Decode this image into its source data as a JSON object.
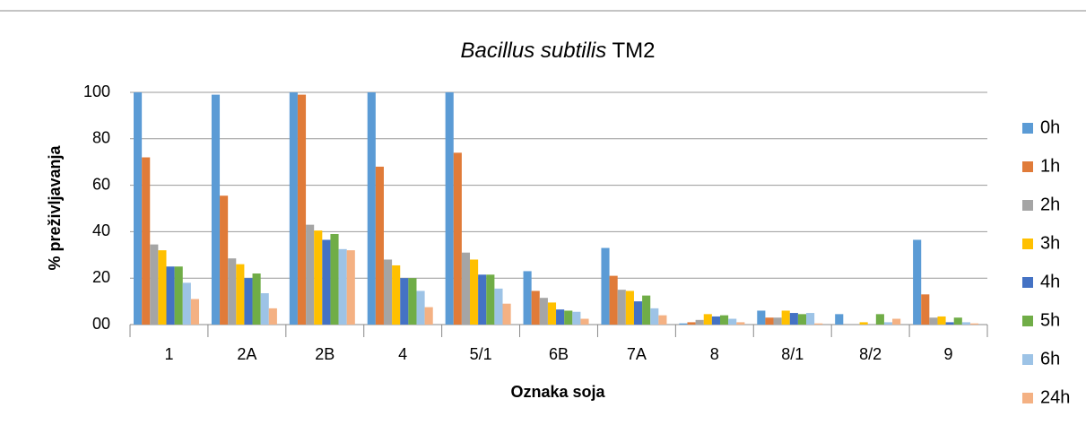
{
  "chart_data": {
    "type": "bar",
    "title": [
      "Bacillus subtilis",
      "TM2"
    ],
    "xlabel": "Oznaka soja",
    "ylabel": "% preživljavanja",
    "categories": [
      "1",
      "2A",
      "2B",
      "4",
      "5/1",
      "6B",
      "7A",
      "8",
      "8/1",
      "8/2",
      "9"
    ],
    "series": [
      {
        "name": "0h",
        "color": "#5b9bd5",
        "values": [
          100,
          99,
          100,
          100,
          100,
          23,
          33,
          0.5,
          6,
          4.5,
          36.5
        ]
      },
      {
        "name": "1h",
        "color": "#e07b39",
        "values": [
          72,
          55.5,
          99,
          68,
          74,
          14.5,
          21,
          1,
          3,
          0,
          13
        ]
      },
      {
        "name": "2h",
        "color": "#a5a5a5",
        "values": [
          34.5,
          28.5,
          43,
          28,
          31,
          11.5,
          15,
          2,
          3,
          0,
          3
        ]
      },
      {
        "name": "3h",
        "color": "#ffc000",
        "values": [
          32,
          26,
          40.5,
          25.5,
          28,
          9.5,
          14.5,
          4.5,
          6,
          1,
          3.5
        ]
      },
      {
        "name": "4h",
        "color": "#4472c4",
        "values": [
          25,
          20,
          36.5,
          20,
          21.5,
          6.5,
          10,
          3.5,
          5,
          0,
          1
        ]
      },
      {
        "name": "5h",
        "color": "#70ad47",
        "values": [
          25,
          22,
          39,
          20,
          21.5,
          6,
          12.5,
          4,
          4.5,
          4.5,
          3
        ]
      },
      {
        "name": "6h",
        "color": "#9dc3e6",
        "values": [
          18,
          13.5,
          32.5,
          14.5,
          15.5,
          5.5,
          7,
          2.5,
          5,
          1,
          1
        ]
      },
      {
        "name": "24h",
        "color": "#f4b183",
        "values": [
          11,
          7,
          32,
          7.5,
          9,
          2.5,
          4,
          1,
          0.5,
          2.5,
          0.5
        ]
      }
    ],
    "ylim": [
      0,
      100
    ],
    "yticks": [
      {
        "value": 0,
        "label": "00"
      },
      20,
      40,
      60,
      80,
      100
    ],
    "grid": true,
    "legend": "right"
  }
}
